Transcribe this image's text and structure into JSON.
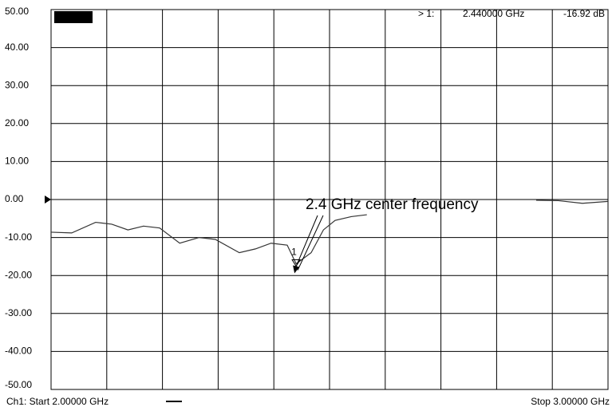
{
  "chart_data": {
    "type": "line",
    "marker_header": {
      "label": "> 1:",
      "frequency": "2.440000 GHz",
      "value": "-16.92 dB"
    },
    "annotation": "2.4 GHz center frequency",
    "marker": {
      "label": "1",
      "x": 2.44,
      "value": -16.92
    },
    "footer_start": "Ch1: Start  2.00000 GHz",
    "footer_stop": "Stop  3.00000 GHz",
    "x": [
      2.0,
      2.037,
      2.08,
      2.109,
      2.138,
      2.166,
      2.195,
      2.231,
      2.266,
      2.295,
      2.338,
      2.367,
      2.395,
      2.424,
      2.44,
      2.467,
      2.489,
      2.51,
      2.539,
      2.567,
      2.7,
      2.871,
      2.911,
      2.954,
      3.0
    ],
    "series": [
      {
        "color": "#333333",
        "values": [
          -8.6,
          -8.8,
          -6,
          -6.5,
          -8,
          -7,
          -7.5,
          -11.5,
          -10,
          -10.5,
          -14,
          -13,
          -11.5,
          -12,
          -16.92,
          -14,
          -8,
          -5.5,
          -4.5,
          -4,
          null,
          -0.2,
          -0.3,
          -1,
          -0.5
        ]
      }
    ],
    "xlim": [
      2.0,
      3.0
    ],
    "xticks": [
      2.0,
      2.1,
      2.2,
      2.3,
      2.4,
      2.5,
      2.6,
      2.7,
      2.8,
      2.9,
      3.0
    ],
    "ylim": [
      -50,
      50
    ],
    "yticks": [
      {
        "value": 50,
        "label": "50.00"
      },
      {
        "value": 40,
        "label": "40.00"
      },
      {
        "value": 30,
        "label": "30.00"
      },
      {
        "value": 20,
        "label": "20.00"
      },
      {
        "value": 10,
        "label": "10.00"
      },
      {
        "value": 0,
        "label": "0.00"
      },
      {
        "value": -10,
        "label": "-10.00"
      },
      {
        "value": -20,
        "label": "-20.00"
      },
      {
        "value": -30,
        "label": "-30.00"
      },
      {
        "value": -40,
        "label": "-40.00"
      },
      {
        "value": -50,
        "label": "-50.00"
      }
    ],
    "grid": true
  }
}
